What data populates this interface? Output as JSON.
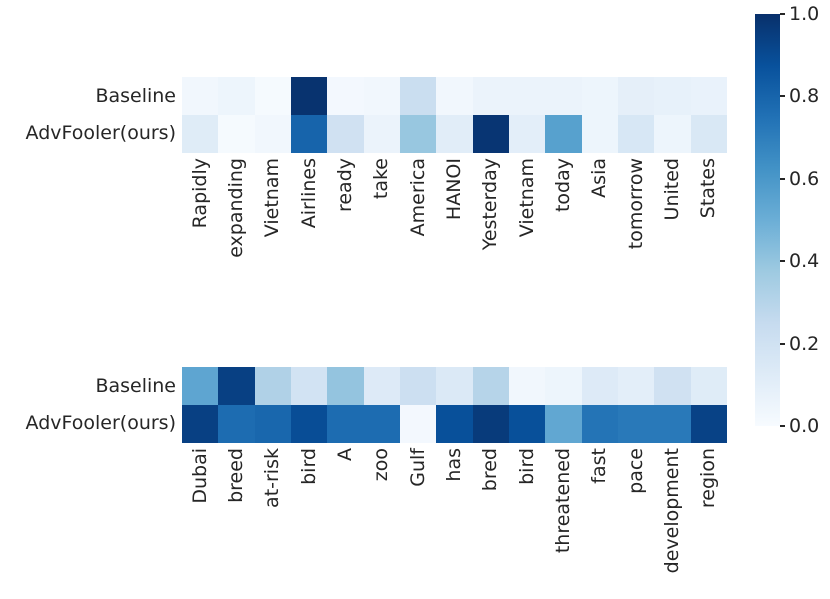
{
  "figure": {
    "background": "#ffffff",
    "text_color": "#262626"
  },
  "chart_data": [
    {
      "type": "heatmap",
      "name": "top-heatmap",
      "colormap": "Blues",
      "vmin": 0.0,
      "vmax": 1.0,
      "rows": [
        "Baseline",
        "AdvFooler(ours)"
      ],
      "columns": [
        "Rapidly",
        "expanding",
        "Vietnam",
        "Airlines",
        "ready",
        "take",
        "America",
        "HANOI",
        "Yesterday",
        "Vietnam",
        "today",
        "Asia",
        "tomorrow",
        "United",
        "States"
      ],
      "values": [
        [
          0.03,
          0.05,
          0.01,
          0.99,
          0.02,
          0.03,
          0.23,
          0.03,
          0.06,
          0.06,
          0.06,
          0.05,
          0.09,
          0.08,
          0.07
        ],
        [
          0.12,
          0.01,
          0.03,
          0.8,
          0.2,
          0.06,
          0.39,
          0.11,
          0.98,
          0.1,
          0.56,
          0.05,
          0.16,
          0.05,
          0.15
        ]
      ]
    },
    {
      "type": "heatmap",
      "name": "bottom-heatmap",
      "colormap": "Blues",
      "vmin": 0.0,
      "vmax": 1.0,
      "rows": [
        "Baseline",
        "AdvFooler(ours)"
      ],
      "columns": [
        "Dubai",
        "breed",
        "at-risk",
        "bird",
        "A",
        "zoo",
        "Gulf",
        "has",
        "bred",
        "bird",
        "threatened",
        "fast",
        "pace",
        "development",
        "region"
      ],
      "values": [
        [
          0.54,
          0.94,
          0.32,
          0.19,
          0.4,
          0.13,
          0.22,
          0.14,
          0.3,
          0.03,
          0.05,
          0.13,
          0.1,
          0.2,
          0.12
        ],
        [
          0.94,
          0.77,
          0.79,
          0.89,
          0.77,
          0.77,
          0.02,
          0.88,
          0.96,
          0.88,
          0.53,
          0.74,
          0.72,
          0.72,
          0.93
        ]
      ]
    }
  ],
  "colorbar": {
    "colormap": "Blues",
    "min": 0.0,
    "max": 1.0,
    "ticks": [
      "1.0",
      "0.8",
      "0.6",
      "0.4",
      "0.2",
      "0.0"
    ]
  },
  "colormap_blues_anchors": [
    "#f7fbff",
    "#deebf7",
    "#c6dbef",
    "#9ecae1",
    "#6baed6",
    "#4292c6",
    "#2171b5",
    "#08519c",
    "#08306b"
  ]
}
